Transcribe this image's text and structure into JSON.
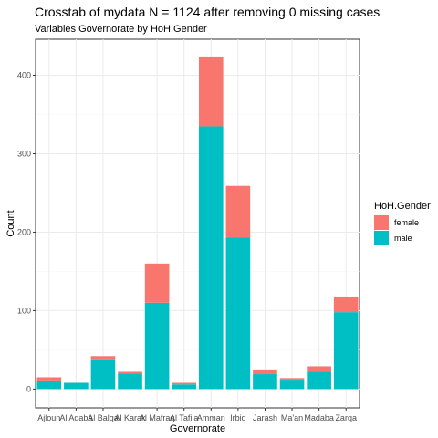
{
  "chart_data": {
    "type": "bar",
    "stacked": true,
    "title": "Crosstab of mydata N = 1124 after removing 0 missing cases",
    "subtitle": "Variables Governorate by HoH.Gender",
    "xlabel": "Governorate",
    "ylabel": "Count",
    "ylim": [
      -24,
      446
    ],
    "yticks": [
      0,
      100,
      200,
      300,
      400
    ],
    "grid": true,
    "legend": {
      "title": "HoH.Gender",
      "position": "right"
    },
    "categories": [
      "Ajloun",
      "Al Aqaba",
      "Al Balqa",
      "Al Karak",
      "Al Mafraq",
      "Al Tafila",
      "Amman",
      "Irbid",
      "Jarash",
      "Ma'an",
      "Madaba",
      "Zarqa"
    ],
    "series": [
      {
        "name": "male",
        "color": "#00BFC4",
        "values": [
          11,
          8,
          38,
          20,
          110,
          6,
          335,
          193,
          19,
          12,
          22,
          98
        ]
      },
      {
        "name": "female",
        "color": "#F8766D",
        "values": [
          4,
          0,
          4,
          2,
          50,
          2,
          89,
          66,
          6,
          2,
          7,
          20
        ]
      }
    ]
  }
}
